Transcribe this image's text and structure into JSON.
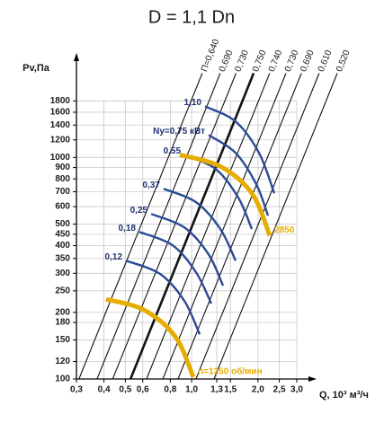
{
  "chart_data": {
    "type": "line",
    "title": "D = 1,1 Dn",
    "x_label": "Q, 10³ м³/ч",
    "y_label": "Pv,Па",
    "log_x": true,
    "log_y": true,
    "grid": true,
    "xlim": [
      0.3,
      3.0
    ],
    "ylim": [
      100,
      2800
    ],
    "xticks": [
      {
        "value": 0.3,
        "label": "0,3"
      },
      {
        "value": 0.4,
        "label": "0,4"
      },
      {
        "value": 0.5,
        "label": "0,5"
      },
      {
        "value": 0.6,
        "label": "0,6"
      },
      {
        "value": 0.8,
        "label": "0,8"
      },
      {
        "value": 1.0,
        "label": "1,0"
      },
      {
        "value": 1.3,
        "label": "1,3"
      },
      {
        "value": 1.5,
        "label": "1,5"
      },
      {
        "value": 2.0,
        "label": "2,0"
      },
      {
        "value": 2.5,
        "label": "2,5"
      },
      {
        "value": 3.0,
        "label": "3,0"
      }
    ],
    "yticks": [
      100,
      120,
      150,
      180,
      200,
      250,
      300,
      350,
      400,
      450,
      500,
      600,
      700,
      800,
      900,
      1000,
      1200,
      1400,
      1600,
      1800
    ],
    "efficiency_lines": [
      {
        "name": "П=0,640",
        "color": "#111111",
        "x": [
          0.308,
          1.117
        ],
        "y": [
          100,
          2400
        ]
      },
      {
        "name": "0,690",
        "color": "#111111",
        "x": [
          0.372,
          1.348
        ],
        "y": [
          100,
          2400
        ]
      },
      {
        "name": "0,730",
        "color": "#111111",
        "x": [
          0.438,
          1.59
        ],
        "y": [
          100,
          2400
        ]
      },
      {
        "name": "0,750",
        "color": "#111111",
        "emphasis": true,
        "x": [
          0.528,
          1.911
        ],
        "y": [
          100,
          2400
        ]
      },
      {
        "name": "0,740",
        "color": "#111111",
        "x": [
          0.624,
          2.26
        ],
        "y": [
          100,
          2400
        ]
      },
      {
        "name": "0,730",
        "color": "#111111",
        "x": [
          0.74,
          2.68
        ],
        "y": [
          100,
          2400
        ]
      },
      {
        "name": "0,690",
        "color": "#111111",
        "x": [
          0.867,
          3.15
        ],
        "y": [
          100,
          2400
        ]
      },
      {
        "name": "0,610",
        "color": "#111111",
        "x": [
          1.046,
          3.79
        ],
        "y": [
          100,
          2400
        ]
      },
      {
        "name": "0,520",
        "color": "#111111",
        "x": [
          1.264,
          4.58
        ],
        "y": [
          100,
          2400
        ]
      }
    ],
    "series": [
      {
        "name": "1,10",
        "color": "#2a4a96",
        "label_position": "start",
        "x": [
          1.15,
          1.584,
          2.022,
          2.372
        ],
        "y": [
          1701,
          1452,
          1048,
          689
        ]
      },
      {
        "name": "Ny=0,75 кВт",
        "color": "#2a4a96",
        "label_position": "start",
        "x": [
          1.194,
          1.584,
          1.966,
          2.221
        ],
        "y": [
          1262,
          1048,
          756,
          546
        ]
      },
      {
        "name": "0,55",
        "color": "#2a4a96",
        "label_position": "start",
        "x": [
          0.927,
          1.288,
          1.629,
          1.876
        ],
        "y": [
          1028,
          886,
          658,
          475
        ]
      },
      {
        "name": "0,37",
        "color": "#2a4a96",
        "label_position": "start",
        "x": [
          0.746,
          1.047,
          1.35,
          1.584
        ],
        "y": [
          722,
          628,
          475,
          342
        ]
      },
      {
        "name": "0,25",
        "color": "#2a4a96",
        "label_position": "start",
        "x": [
          0.655,
          0.927,
          1.194,
          1.388
        ],
        "y": [
          556,
          483,
          365,
          264
        ]
      },
      {
        "name": "0,18",
        "color": "#2a4a96",
        "label_position": "start",
        "x": [
          0.579,
          0.82,
          1.047,
          1.228
        ],
        "y": [
          461,
          401,
          303,
          219
        ]
      },
      {
        "name": "0,12",
        "color": "#2a4a96",
        "label_position": "start",
        "x": [
          0.503,
          0.719,
          0.927,
          1.088
        ],
        "y": [
          342,
          298,
          225,
          159
        ]
      },
      {
        "name": "2850",
        "color": "#e6ad00",
        "label_position": "end",
        "x": [
          0.884,
          1.35,
          1.876,
          2.264
        ],
        "y": [
          1028,
          911,
          689,
          444
        ]
      },
      {
        "name": "n=1350 об/мин",
        "color": "#e6ad00",
        "label_position": "end",
        "x": [
          0.409,
          0.607,
          0.844,
          1.018
        ],
        "y": [
          229,
          205,
          155,
          102
        ]
      }
    ]
  }
}
